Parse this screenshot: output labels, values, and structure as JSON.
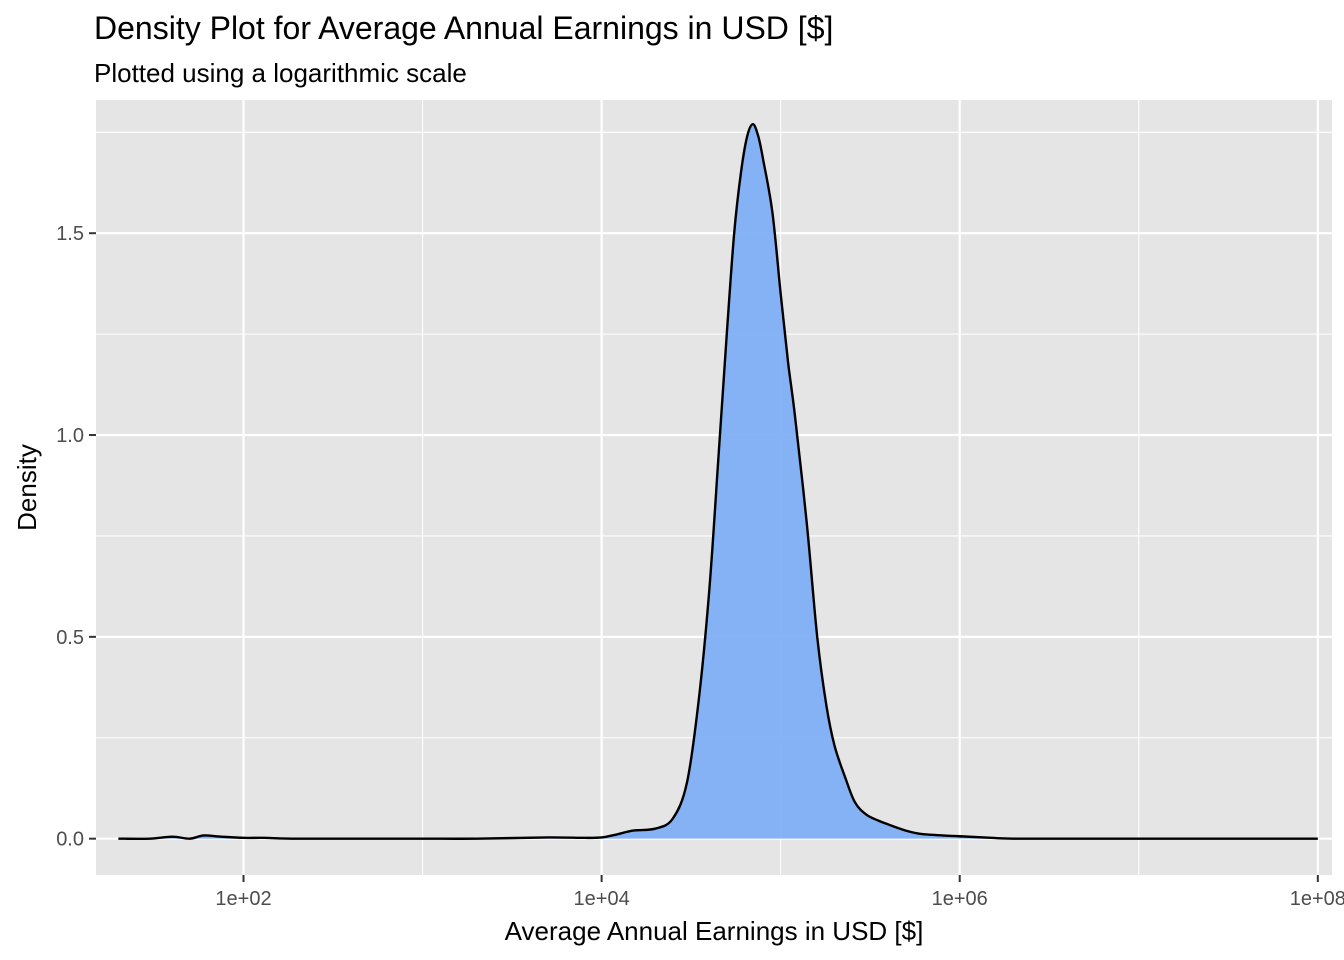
{
  "chart_data": {
    "type": "area",
    "title": "Density Plot for Average Annual Earnings in USD [$]",
    "subtitle": "Plotted using a logarithmic scale",
    "xlabel": "Average Annual Earnings in USD [$]",
    "ylabel": "Density",
    "x_scale": "log10",
    "xlim": [
      15,
      120000000
    ],
    "ylim": [
      -0.09,
      1.83
    ],
    "x_ticks": [
      {
        "value": 100,
        "label": "1e+02"
      },
      {
        "value": 10000,
        "label": "1e+04"
      },
      {
        "value": 1000000,
        "label": "1e+06"
      },
      {
        "value": 100000000,
        "label": "1e+08"
      }
    ],
    "y_ticks": [
      {
        "value": 0.0,
        "label": "0.0"
      },
      {
        "value": 0.5,
        "label": "0.5"
      },
      {
        "value": 1.0,
        "label": "1.0"
      },
      {
        "value": 1.5,
        "label": "1.5"
      }
    ],
    "grid": true,
    "legend": "none",
    "colors": {
      "panel_background": "#E5E5E5",
      "grid_major": "#FFFFFF",
      "area_fill": "#7FAEF5",
      "line": "#000000",
      "axis_text": "#4D4D4D"
    },
    "series": [
      {
        "x": [
          20,
          30,
          40,
          50,
          60,
          75,
          100,
          130,
          200,
          500,
          1000,
          2000,
          5000,
          8000,
          10000,
          12000,
          15000,
          20000,
          25000,
          30000,
          35000,
          40000,
          45000,
          50000,
          55000,
          60000,
          65000,
          70000,
          75000,
          80000,
          90000,
          100000,
          110000,
          120000,
          140000,
          160000,
          180000,
          200000,
          230000,
          260000,
          300000,
          350000,
          400000,
          500000,
          600000,
          800000,
          1000000,
          1500000,
          2000000,
          5000000,
          10000000,
          50000000,
          100000000
        ],
        "y": [
          0.0,
          0.0,
          0.005,
          0.0,
          0.008,
          0.005,
          0.002,
          0.002,
          0.0,
          0.0,
          0.0,
          0.0,
          0.003,
          0.002,
          0.003,
          0.01,
          0.02,
          0.025,
          0.05,
          0.14,
          0.35,
          0.62,
          0.95,
          1.25,
          1.5,
          1.65,
          1.74,
          1.77,
          1.74,
          1.68,
          1.55,
          1.35,
          1.18,
          1.05,
          0.78,
          0.5,
          0.33,
          0.23,
          0.15,
          0.09,
          0.06,
          0.045,
          0.035,
          0.02,
          0.012,
          0.008,
          0.006,
          0.002,
          0.0,
          0.0,
          0.0,
          0.0,
          0.0
        ]
      }
    ]
  }
}
